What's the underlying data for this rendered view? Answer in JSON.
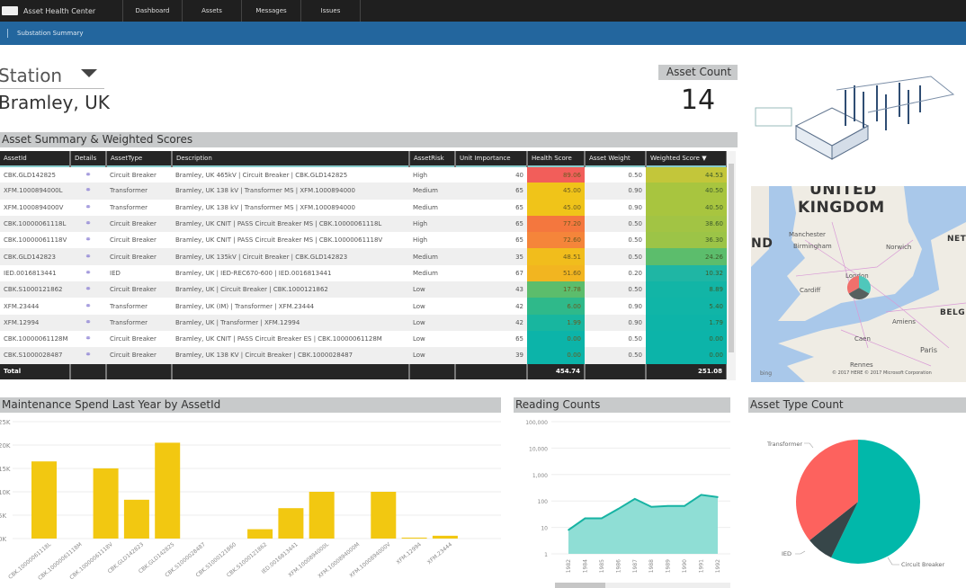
{
  "app": {
    "title": "Asset Health Center",
    "nav": [
      "Dashboard",
      "Assets",
      "Messages",
      "Issues"
    ],
    "breadcrumb": "Substation Summary"
  },
  "station": {
    "label": "Station",
    "value": "Bramley, UK"
  },
  "asset_count": {
    "label": "Asset Count",
    "value": "14"
  },
  "table": {
    "title": "Asset Summary & Weighted Scores",
    "columns": [
      "AssetId",
      "Details",
      "AssetType",
      "Description",
      "AssetRisk",
      "Unit Importance",
      "Health Score",
      "Asset Weight",
      "Weighted Score"
    ],
    "sort_indicator": "▼",
    "rows": [
      {
        "id": "CBK.GLD142825",
        "type": "Circuit Breaker",
        "desc": "Bramley, UK 465kV | Circuit Breaker | CBK.GLD142825",
        "risk": "High",
        "imp": "40",
        "health": "89.06",
        "hc": "#f25e5a",
        "weight": "0.50",
        "ws": "44.53",
        "wc": "#c3c63a"
      },
      {
        "id": "XFM.1000894000L",
        "type": "Transformer",
        "desc": "Bramley, UK 138 kV | Transformer MS | XFM.1000894000",
        "risk": "Medium",
        "imp": "65",
        "health": "45.00",
        "hc": "#f0c419",
        "weight": "0.90",
        "ws": "40.50",
        "wc": "#a8c53f"
      },
      {
        "id": "XFM.1000894000V",
        "type": "Transformer",
        "desc": "Bramley, UK 138 kV | Transformer MS | XFM.1000894000",
        "risk": "Medium",
        "imp": "65",
        "health": "45.00",
        "hc": "#f0c419",
        "weight": "0.90",
        "ws": "40.50",
        "wc": "#a8c53f"
      },
      {
        "id": "CBK.10000061118L",
        "type": "Circuit Breaker",
        "desc": "Bramley, UK CNIT | PASS Circuit Breaker MS | CBK.10000061118L",
        "risk": "High",
        "imp": "65",
        "health": "77.20",
        "hc": "#f4773e",
        "weight": "0.50",
        "ws": "38.60",
        "wc": "#a2c444"
      },
      {
        "id": "CBK.10000061118V",
        "type": "Circuit Breaker",
        "desc": "Bramley, UK CNIT | PASS Circuit Breaker MS | CBK.10000061118V",
        "risk": "High",
        "imp": "65",
        "health": "72.60",
        "hc": "#f5853a",
        "weight": "0.50",
        "ws": "36.30",
        "wc": "#9cc447"
      },
      {
        "id": "CBK.GLD142823",
        "type": "Circuit Breaker",
        "desc": "Bramley, UK 135kV | Circuit Breaker | CBK.GLD142823",
        "risk": "Medium",
        "imp": "35",
        "health": "48.51",
        "hc": "#f1bd1c",
        "weight": "0.50",
        "ws": "24.26",
        "wc": "#5cbd6c"
      },
      {
        "id": "IED.0016813441",
        "type": "IED",
        "desc": "Bramley, UK | IED-REC670-600 | IED.0016813441",
        "risk": "Medium",
        "imp": "67",
        "health": "51.60",
        "hc": "#f2b520",
        "weight": "0.20",
        "ws": "10.32",
        "wc": "#1fb6a4"
      },
      {
        "id": "CBK.S1000121862",
        "type": "Circuit Breaker",
        "desc": "Bramley, UK | Circuit Breaker | CBK.1000121862",
        "risk": "Low",
        "imp": "43",
        "health": "17.78",
        "hc": "#5cbd6c",
        "weight": "0.50",
        "ws": "8.89",
        "wc": "#12b5a6"
      },
      {
        "id": "XFM.23444",
        "type": "Transformer",
        "desc": "Bramley, UK (IM) | Transformer | XFM.23444",
        "risk": "Low",
        "imp": "42",
        "health": "6.00",
        "hc": "#2fb98a",
        "weight": "0.90",
        "ws": "5.40",
        "wc": "#10b5a7"
      },
      {
        "id": "XFM.12994",
        "type": "Transformer",
        "desc": "Bramley, UK | Transformer | XFM.12994",
        "risk": "Low",
        "imp": "42",
        "health": "1.99",
        "hc": "#18b69f",
        "weight": "0.90",
        "ws": "1.79",
        "wc": "#0db4a8"
      },
      {
        "id": "CBK.10000061128M",
        "type": "Circuit Breaker",
        "desc": "Bramley, UK CNIT | PASS Circuit Breaker ES | CBK.10000061128M",
        "risk": "Low",
        "imp": "65",
        "health": "0.00",
        "hc": "#0cb4a9",
        "weight": "0.50",
        "ws": "0.00",
        "wc": "#0cb4a9"
      },
      {
        "id": "CBK.S1000028487",
        "type": "Circuit Breaker",
        "desc": "Bramley, UK 138 KV | Circuit Breaker | CBK.1000028487",
        "risk": "Low",
        "imp": "39",
        "health": "0.00",
        "hc": "#0cb4a9",
        "weight": "0.50",
        "ws": "0.00",
        "wc": "#0cb4a9"
      }
    ],
    "total": {
      "label": "Total",
      "health": "454.74",
      "ws": "251.08"
    }
  },
  "map": {
    "labels": [
      "UNITED",
      "KINGDOM",
      "Manchester",
      "Birmingham",
      "Norwich",
      "London",
      "Cardiff",
      "NETH",
      "BELG",
      "ND",
      "Amiens",
      "Caen",
      "Paris",
      "Rennes"
    ],
    "copyright": "© 2017 HERE   © 2017 Microsoft Corporation",
    "provider": "bing"
  },
  "chart_data": [
    {
      "type": "bar",
      "title": "Maintenance Spend Last Year by AssetId",
      "color": "#f2c811",
      "ylim": [
        0,
        25000
      ],
      "yticks": [
        "0K",
        "5K",
        "10K",
        "15K",
        "20K",
        "25K"
      ],
      "categories": [
        "CBK.10000061118L",
        "CBK.10000061118M",
        "CBK.10000061118V",
        "CBK.GLD142823",
        "CBK.GLD142825",
        "CBK.S1000028487",
        "CBK.S1000121860",
        "CBK.S1000121862",
        "IED.0016813441",
        "XFM.1000894000L",
        "XFM.1000894000M",
        "XFM.1000894000V",
        "XFM.12994",
        "XFM.23444"
      ],
      "values": [
        16500,
        0,
        15000,
        8300,
        20500,
        0,
        0,
        2000,
        6500,
        10000,
        0,
        10000,
        200,
        600
      ]
    },
    {
      "type": "area",
      "title": "Reading Counts",
      "color": "#17b3a3",
      "yscale": "log",
      "ylim": [
        1,
        100000
      ],
      "yticks": [
        "1",
        "10",
        "100",
        "1,000",
        "10,000",
        "100,000"
      ],
      "x": [
        "1982",
        "1984",
        "1985",
        "1986",
        "1987",
        "1988",
        "1989",
        "1990",
        "1991",
        "1992"
      ],
      "values": [
        8,
        22,
        22,
        50,
        120,
        60,
        65,
        65,
        170,
        140
      ]
    },
    {
      "type": "pie",
      "title": "Asset Type Count",
      "categories": [
        "Circuit Breaker",
        "IED",
        "Transformer"
      ],
      "values": [
        8,
        1,
        5
      ],
      "colors": [
        "#01b8aa",
        "#374649",
        "#fd625e"
      ]
    }
  ]
}
